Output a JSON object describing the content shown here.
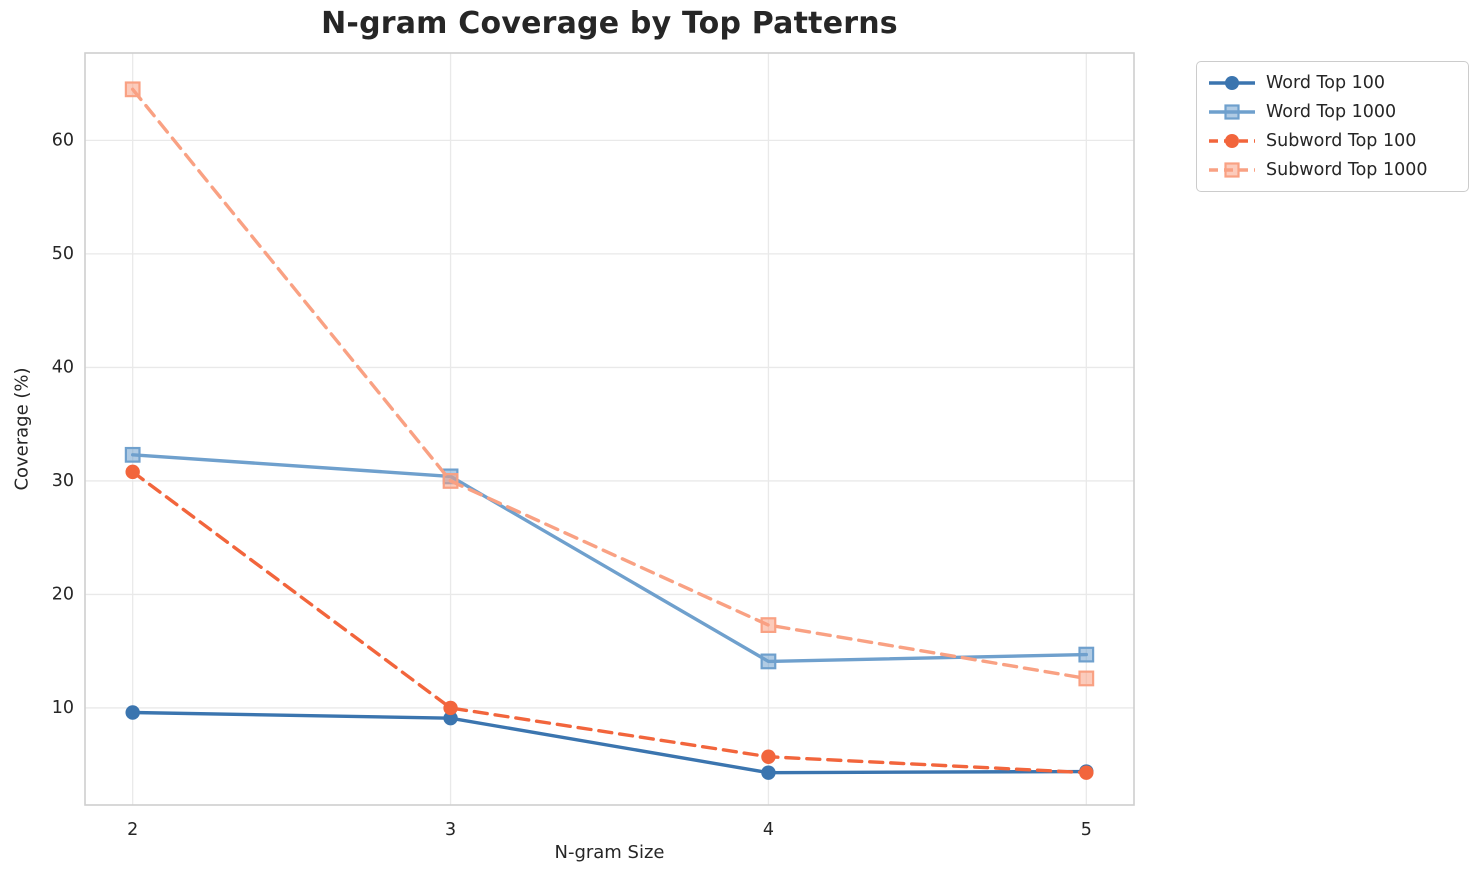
{
  "title": "N-gram Coverage by Top Patterns",
  "chart_data": {
    "type": "line",
    "title": "N-gram Coverage by Top Patterns",
    "xlabel": "N-gram Size",
    "ylabel": "Coverage (%)",
    "x": [
      2,
      3,
      4,
      5
    ],
    "xticks": [
      2,
      3,
      4,
      5
    ],
    "yticks": [
      10,
      20,
      30,
      40,
      50,
      60
    ],
    "xlim": [
      1.85,
      5.15
    ],
    "ylim": [
      1.45,
      67.7
    ],
    "grid": true,
    "legend_position": "outside-top-right",
    "series": [
      {
        "name": "Word Top 100",
        "values": [
          9.6,
          9.1,
          4.3,
          4.4
        ],
        "color": "#3B75AF",
        "line_style": "solid",
        "marker": "circle"
      },
      {
        "name": "Word Top 1000",
        "values": [
          32.3,
          30.4,
          14.1,
          14.7
        ],
        "color": "#6FA0CD",
        "line_style": "solid",
        "marker": "square"
      },
      {
        "name": "Subword Top 100",
        "values": [
          30.8,
          10.0,
          5.7,
          4.3
        ],
        "color": "#F2653C",
        "line_style": "dashed",
        "marker": "circle"
      },
      {
        "name": "Subword Top 1000",
        "values": [
          64.5,
          30.0,
          17.3,
          12.6
        ],
        "color": "#F9A183",
        "line_style": "dashed",
        "marker": "square"
      }
    ],
    "style": {
      "grid_color": "#e9e9e9",
      "spine_color": "#cfcfcf",
      "text_color": "#262626",
      "background": "#ffffff"
    }
  }
}
